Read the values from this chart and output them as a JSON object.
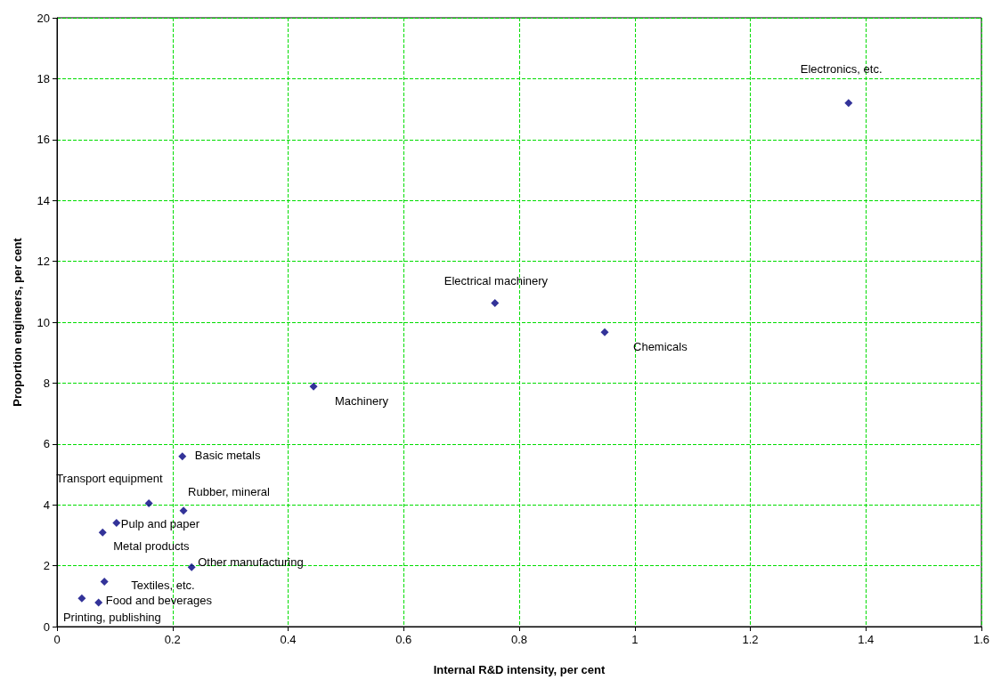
{
  "chart_data": {
    "type": "scatter",
    "xlabel": "Internal R&D intensity, per cent",
    "ylabel": "Proportion engineers, per cent",
    "x": [
      1.37,
      0.758,
      0.948,
      0.444,
      0.217,
      0.159,
      0.219,
      0.103,
      0.079,
      0.233,
      0.082,
      0.043,
      0.072
    ],
    "series": [
      {
        "color": "#000080",
        "values": [
          17.2,
          10.63,
          9.67,
          7.89,
          5.59,
          4.05,
          3.81,
          3.41,
          3.09,
          1.95,
          1.48,
          0.93,
          0.79
        ]
      }
    ],
    "xlim": [
      0,
      1.6
    ],
    "xticks": [
      0,
      0.2,
      0.4,
      0.6,
      0.8,
      1,
      1.2,
      1.4,
      1.6
    ],
    "ylim": [
      0,
      20
    ],
    "yticks": [
      0,
      2,
      4,
      6,
      8,
      10,
      12,
      14,
      16,
      18,
      20
    ],
    "grid": true,
    "marker": "diamond",
    "annotations": [
      {
        "text": "Electronics, etc.",
        "x": 1.37,
        "y": 17.2
      },
      {
        "text": "Electrical machinery",
        "x": 0.758,
        "y": 10.63
      },
      {
        "text": "Chemicals",
        "x": 0.948,
        "y": 9.67
      },
      {
        "text": "Machinery",
        "x": 0.444,
        "y": 7.89
      },
      {
        "text": "Basic metals",
        "x": 0.217,
        "y": 5.59
      },
      {
        "text": "Transport equipment",
        "x": 0.159,
        "y": 4.05
      },
      {
        "text": "Rubber, mineral",
        "x": 0.219,
        "y": 3.81
      },
      {
        "text": "Pulp and paper",
        "x": 0.103,
        "y": 3.41
      },
      {
        "text": "Metal products",
        "x": 0.079,
        "y": 3.09
      },
      {
        "text": "Other manufacturing",
        "x": 0.233,
        "y": 1.95
      },
      {
        "text": "Textiles, etc.",
        "x": 0.082,
        "y": 1.48
      },
      {
        "text": "Printing, publishing",
        "x": 0.043,
        "y": 0.93
      },
      {
        "text": "Food and beverages",
        "x": 0.072,
        "y": 0.79
      }
    ]
  }
}
